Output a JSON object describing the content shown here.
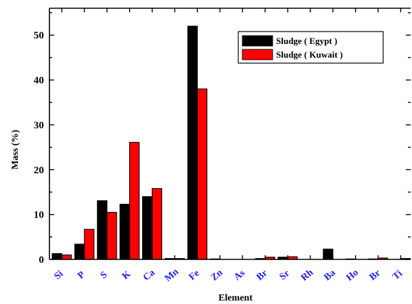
{
  "chart_data": {
    "type": "bar",
    "title": "",
    "xlabel": "Element",
    "ylabel": "Mass (%)",
    "ylim": [
      0,
      56
    ],
    "yticks": [
      0,
      10,
      20,
      30,
      40,
      50
    ],
    "categories": [
      "Si",
      "P",
      "S",
      "K",
      "Ca",
      "Mn",
      "Fe",
      "Zn",
      "As",
      "Br",
      "Sr",
      "Rh",
      "Ba",
      "Ho",
      "Br",
      "Ti"
    ],
    "series": [
      {
        "name": "Sludge ( Egypt )",
        "color": "#000000",
        "values": [
          1.3,
          3.4,
          13.1,
          12.3,
          14.0,
          0.2,
          52.0,
          0.1,
          0.0,
          0.2,
          0.5,
          0.0,
          2.3,
          0.1,
          0.1,
          0.0
        ]
      },
      {
        "name": "Sludge ( Kuwait )",
        "color": "#ff0000",
        "values": [
          1.0,
          6.7,
          10.5,
          26.1,
          15.8,
          0.2,
          38.0,
          0.0,
          0.0,
          0.5,
          0.6,
          0.0,
          0.0,
          0.0,
          0.3,
          0.2
        ]
      }
    ],
    "grid": false,
    "legend_position": "top-right",
    "tick_label_color": "#1a1aff"
  }
}
